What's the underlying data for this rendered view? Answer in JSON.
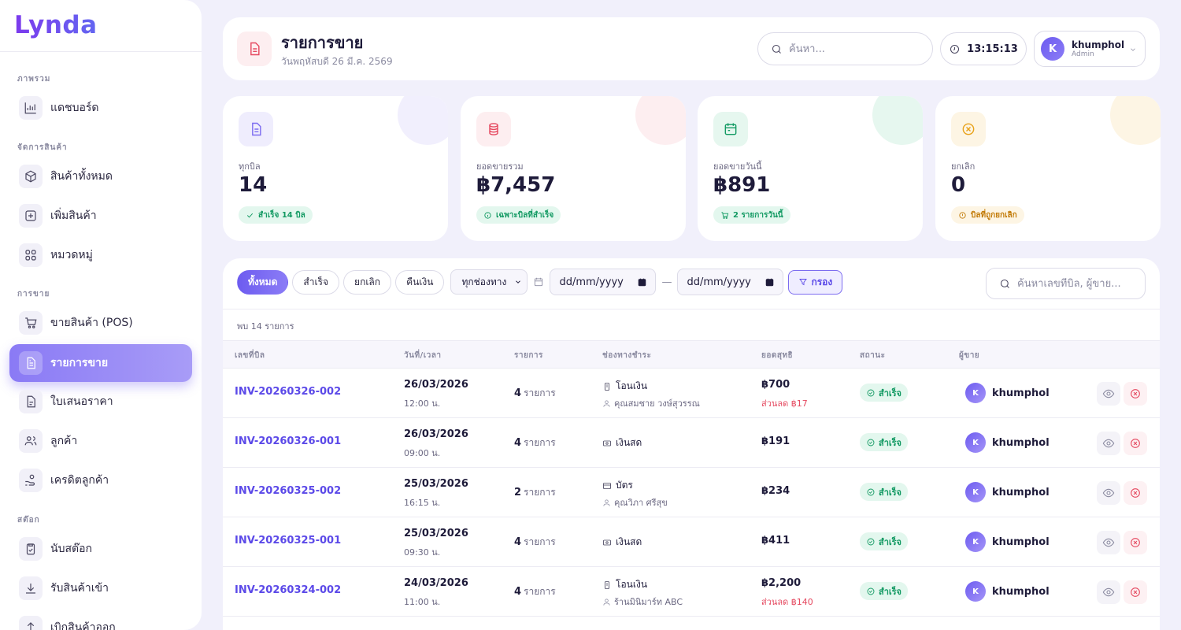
{
  "app": {
    "logo": "Lynda"
  },
  "sidebar": {
    "sections": [
      {
        "title": "ภาพรวม"
      },
      {
        "title": "จัดการสินค้า"
      },
      {
        "title": "การขาย"
      },
      {
        "title": "สต๊อก"
      }
    ],
    "items": [
      {
        "label": "แดชบอร์ด",
        "icon": "chart-icon"
      },
      {
        "label": "สินค้าทั้งหมด",
        "icon": "box-icon"
      },
      {
        "label": "เพิ่มสินค้า",
        "icon": "plus-square-icon"
      },
      {
        "label": "หมวดหมู่",
        "icon": "grid-icon"
      },
      {
        "label": "ขายสินค้า (POS)",
        "icon": "cart-icon"
      },
      {
        "label": "รายการขาย",
        "icon": "document-icon",
        "active": true
      },
      {
        "label": "ใบเสนอราคา",
        "icon": "quote-document-icon"
      },
      {
        "label": "ลูกค้า",
        "icon": "users-icon"
      },
      {
        "label": "เครดิตลูกค้า",
        "icon": "hand-coin-icon"
      },
      {
        "label": "นับสต๊อก",
        "icon": "clipboard-check-icon"
      },
      {
        "label": "รับสินค้าเข้า",
        "icon": "download-icon"
      },
      {
        "label": "เบิกสินค้าออก",
        "icon": "upload-icon"
      }
    ]
  },
  "header": {
    "title": "รายการขาย",
    "subtitle": "วันพฤหัสบดี 26 มี.ค. 2569",
    "search_placeholder": "ค้นหา...",
    "time": "13:15:13",
    "user": {
      "initial": "K",
      "name": "khumphol",
      "role": "Admin"
    }
  },
  "stats": [
    {
      "label": "ทุกบิล",
      "value": "14",
      "badge": "สำเร็จ 14 บิล",
      "color": "#7c6cf0"
    },
    {
      "label": "ยอดขายรวม",
      "value": "฿7,457",
      "badge": "เฉพาะบิลที่สำเร็จ",
      "color": "#e5485f"
    },
    {
      "label": "ยอดขายวันนี้",
      "value": "฿891",
      "badge": "2 รายการวันนี้",
      "color": "#139a63"
    },
    {
      "label": "ยกเลิก",
      "value": "0",
      "badge": "บิลที่ถูกยกเลิก",
      "color": "#e8a21a"
    }
  ],
  "filters": {
    "chips": [
      "ทั้งหมด",
      "สำเร็จ",
      "ยกเลิก",
      "คืนเงิน"
    ],
    "channel": "ทุกช่องทาง",
    "date_from": "dd/mm/yyyy",
    "dash": "—",
    "date_to": "dd/mm/yyyy",
    "filter_button": "กรอง",
    "search_placeholder": "ค้นหาเลขที่บิล, ผู้ขาย..."
  },
  "table": {
    "found_text": "พบ 14 รายการ",
    "headers": [
      "เลขที่บิล",
      "วันที่/เวลา",
      "รายการ",
      "ช่องทางชำระ",
      "ยอดสุทธิ",
      "สถานะ",
      "ผู้ขาย"
    ],
    "rows": [
      {
        "invoice": "INV-20260326-002",
        "date": "26/03/2026",
        "time": "12:00 น.",
        "count": "4",
        "count_unit": "รายการ",
        "payment": "โอนเงิน",
        "payment_icon": "transfer-icon",
        "customer": "คุณสมชาย วงษ์สุวรรณ",
        "net": "฿700",
        "discount": "ส่วนลด ฿17",
        "status": "สำเร็จ",
        "seller": "khumphol",
        "seller_initial": "K"
      },
      {
        "invoice": "INV-20260326-001",
        "date": "26/03/2026",
        "time": "09:00 น.",
        "count": "4",
        "count_unit": "รายการ",
        "payment": "เงินสด",
        "payment_icon": "cash-icon",
        "customer": "",
        "net": "฿191",
        "discount": "",
        "status": "สำเร็จ",
        "seller": "khumphol",
        "seller_initial": "K"
      },
      {
        "invoice": "INV-20260325-002",
        "date": "25/03/2026",
        "time": "16:15 น.",
        "count": "2",
        "count_unit": "รายการ",
        "payment": "บัตร",
        "payment_icon": "card-icon",
        "customer": "คุณวิภา ศรีสุข",
        "net": "฿234",
        "discount": "",
        "status": "สำเร็จ",
        "seller": "khumphol",
        "seller_initial": "K"
      },
      {
        "invoice": "INV-20260325-001",
        "date": "25/03/2026",
        "time": "09:30 น.",
        "count": "4",
        "count_unit": "รายการ",
        "payment": "เงินสด",
        "payment_icon": "cash-icon",
        "customer": "",
        "net": "฿411",
        "discount": "",
        "status": "สำเร็จ",
        "seller": "khumphol",
        "seller_initial": "K"
      },
      {
        "invoice": "INV-20260324-002",
        "date": "24/03/2026",
        "time": "11:00 น.",
        "count": "4",
        "count_unit": "รายการ",
        "payment": "โอนเงิน",
        "payment_icon": "transfer-icon",
        "customer": "ร้านมินิมาร์ท ABC",
        "net": "฿2,200",
        "discount": "ส่วนลด ฿140",
        "status": "สำเร็จ",
        "seller": "khumphol",
        "seller_initial": "K"
      }
    ]
  }
}
